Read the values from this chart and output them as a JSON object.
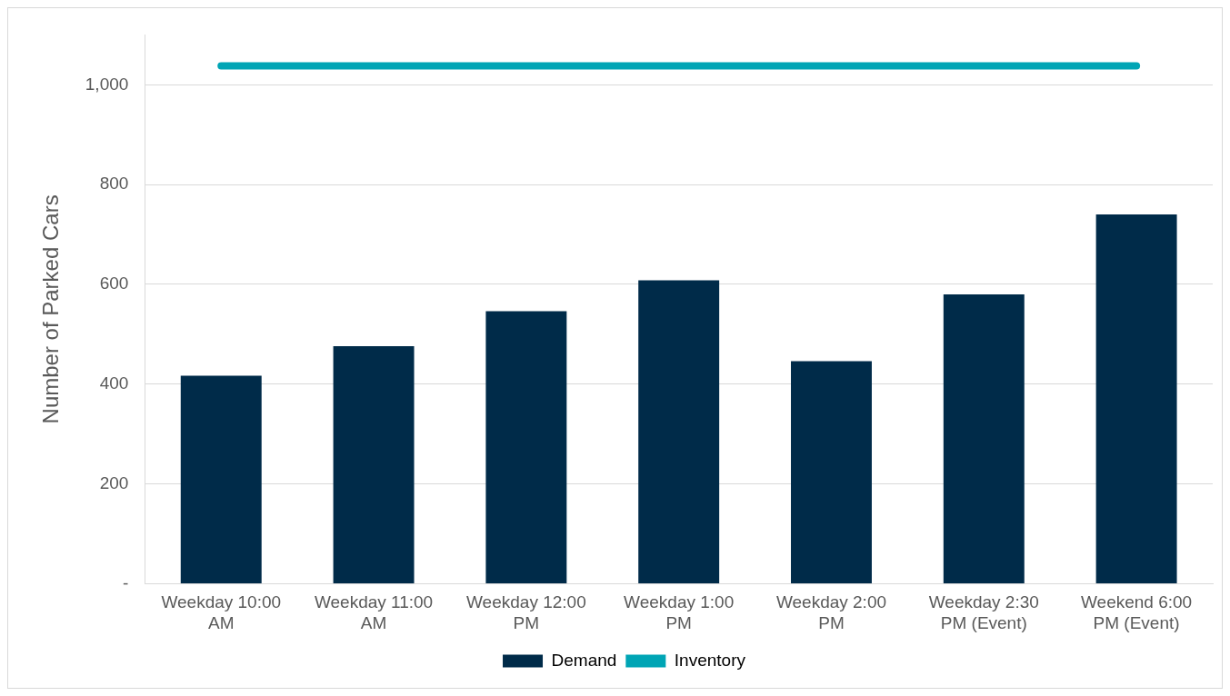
{
  "chart_data": {
    "type": "bar",
    "categories": [
      "Weekday 10:00 AM",
      "Weekday 11:00 AM",
      "Weekday 12:00 PM",
      "Weekday 1:00 PM",
      "Weekday 2:00 PM",
      "Weekday 2:30 PM (Event)",
      "Weekend 6:00 PM (Event)"
    ],
    "ylabel": "Number of Parked Cars",
    "series": [
      {
        "name": "Demand",
        "color": "#002b49",
        "values": [
          417,
          476,
          546,
          608,
          446,
          580,
          740
        ]
      },
      {
        "name": "Inventory",
        "type": "line",
        "color": "#00a5b5",
        "values": [
          1038,
          1038,
          1038,
          1038,
          1038,
          1038,
          1038
        ]
      }
    ],
    "ylim": [
      0,
      1100
    ],
    "yticks": [
      {
        "value": 0,
        "label": "-"
      },
      200,
      400,
      600,
      800,
      {
        "value": 1000,
        "label": "1,000"
      }
    ],
    "grid": "y",
    "legend": "bottom",
    "marker": "none"
  }
}
